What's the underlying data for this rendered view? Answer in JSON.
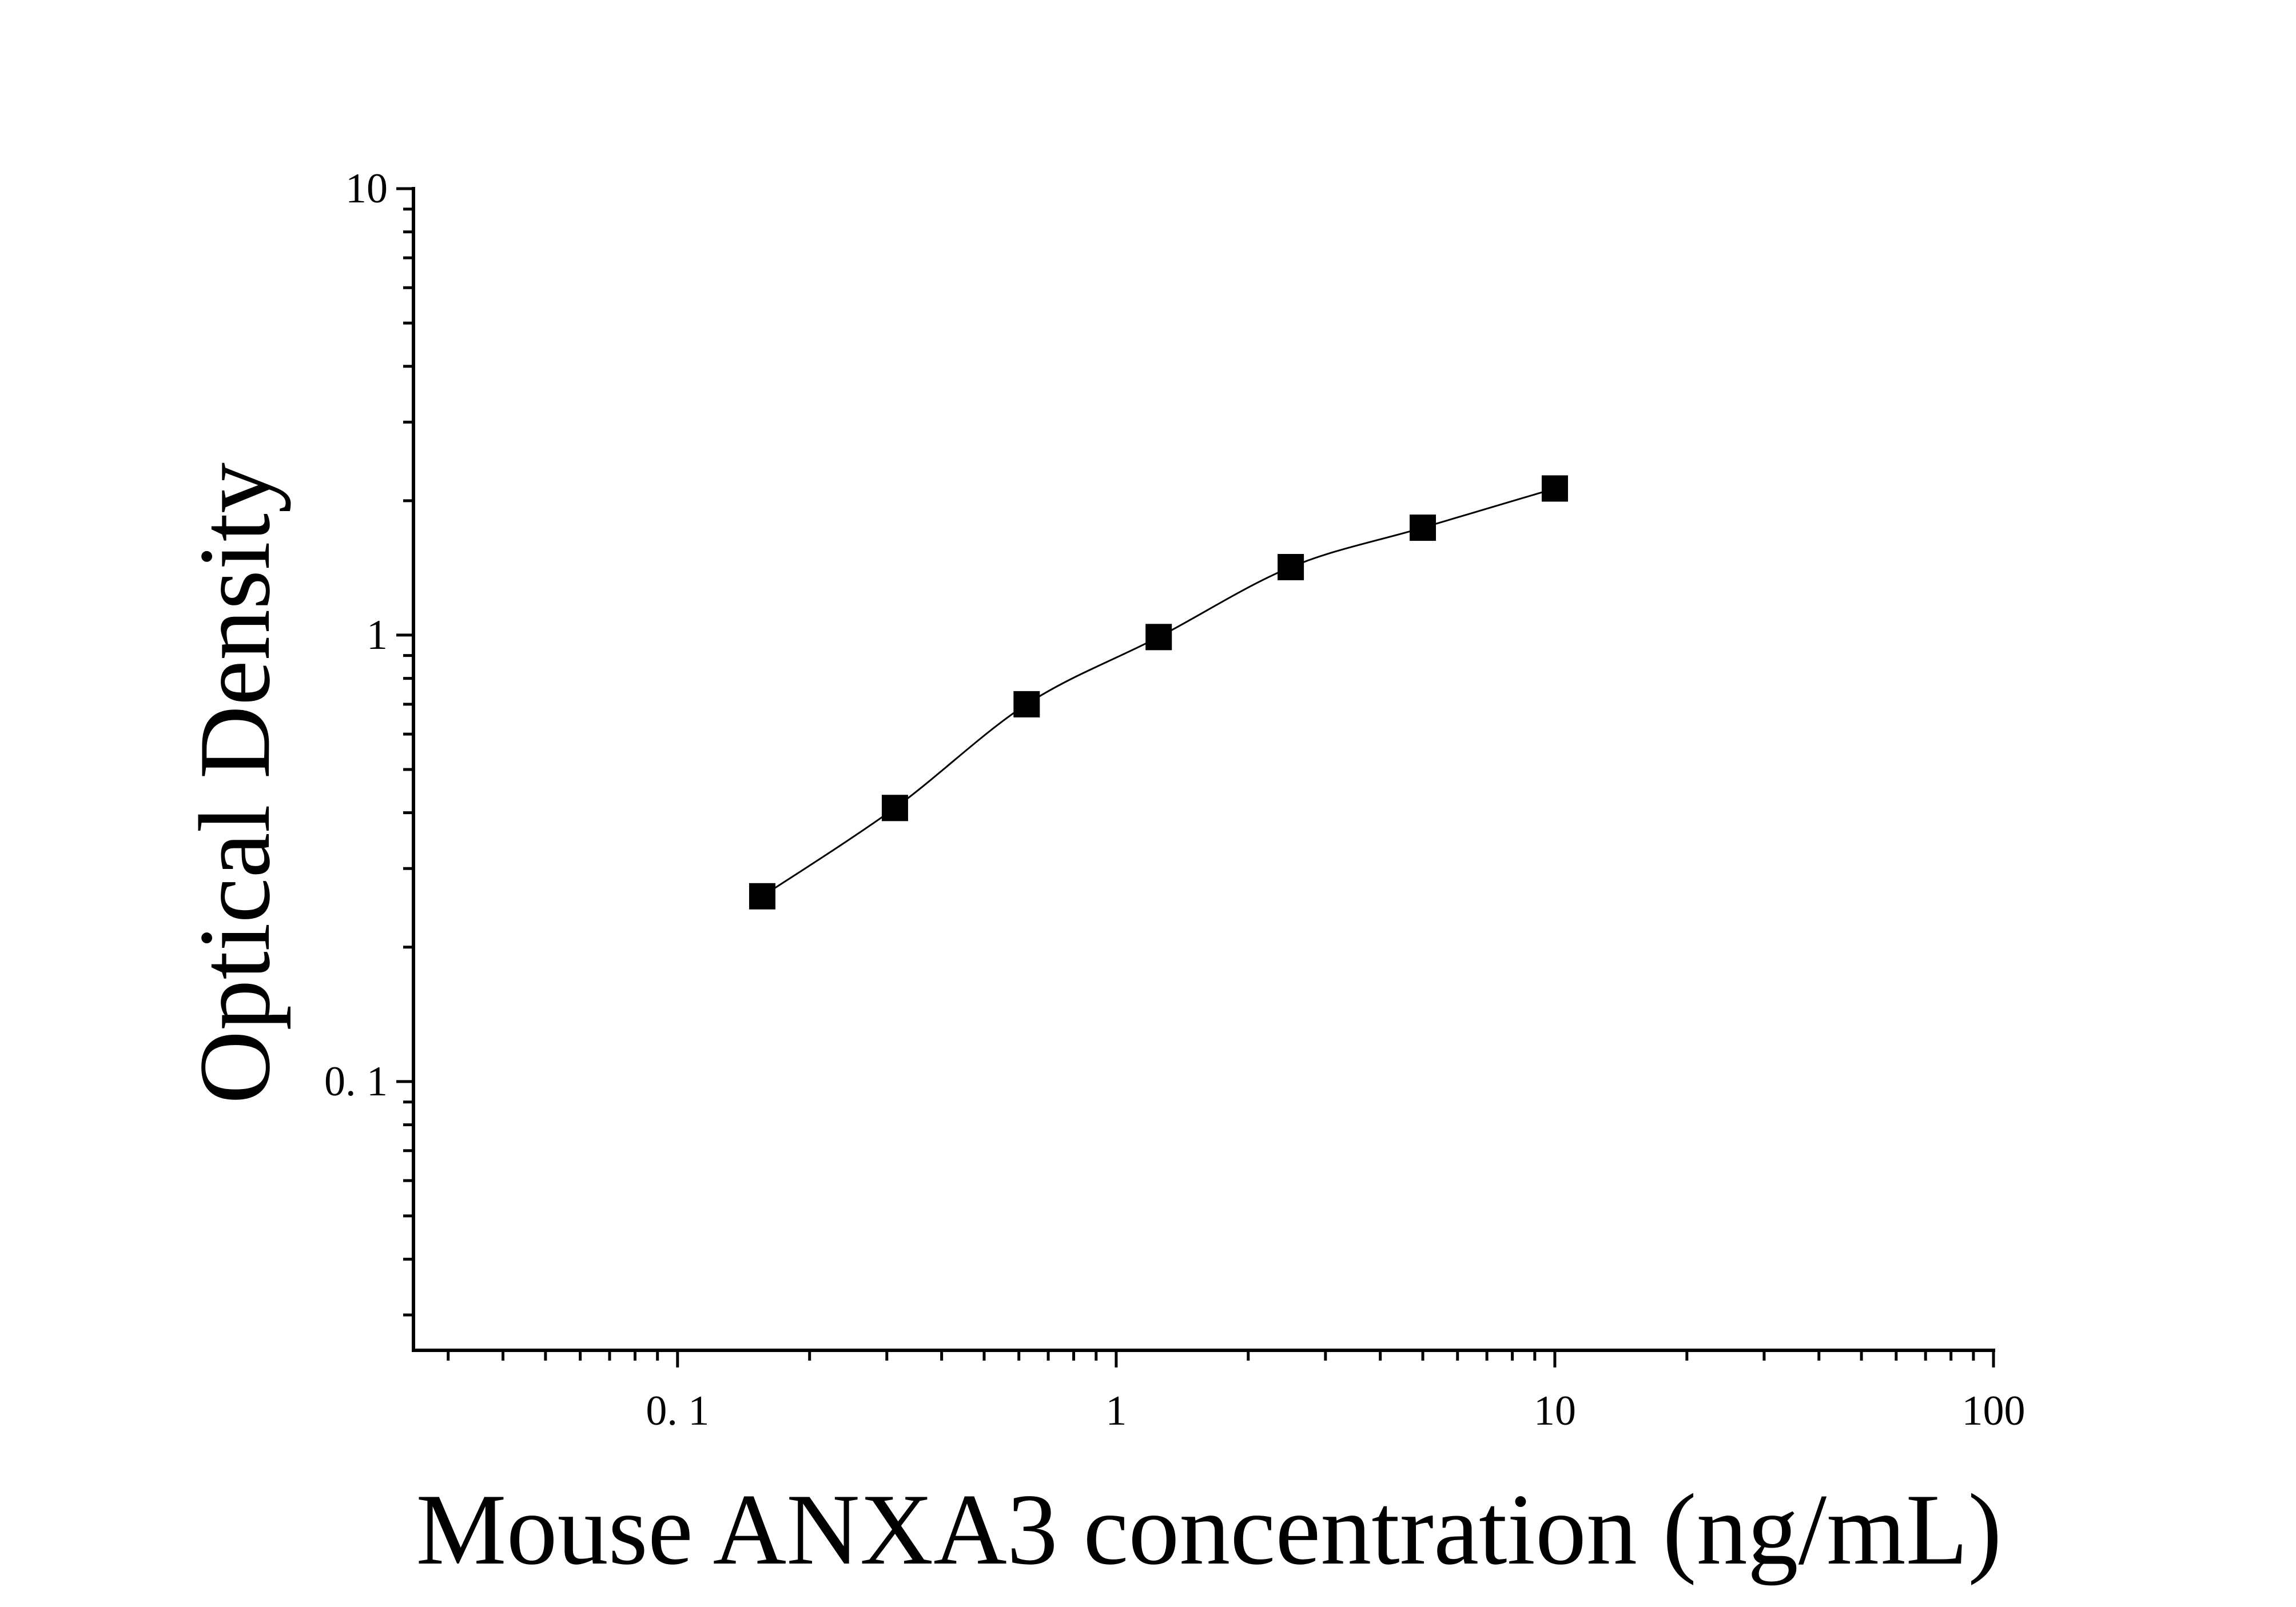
{
  "chart_data": {
    "type": "scatter",
    "xlabel": "Mouse ANXA3 concentration (ng/mL)",
    "ylabel": "Optical Density",
    "xscale": "log",
    "yscale": "log",
    "xlim": [
      0.025,
      100
    ],
    "ylim": [
      0.025,
      10
    ],
    "grid": false,
    "legend": "none",
    "x_tick_labels": [
      {
        "value": 0.1,
        "label": "0. 1"
      },
      {
        "value": 1,
        "label": "1"
      },
      {
        "value": 10,
        "label": "10"
      },
      {
        "value": 100,
        "label": "100"
      }
    ],
    "y_tick_labels": [
      {
        "value": 0.1,
        "label": "0. 1"
      },
      {
        "value": 1,
        "label": "1"
      },
      {
        "value": 10,
        "label": "10"
      }
    ],
    "series": [
      {
        "x": [
          0.156,
          0.313,
          0.625,
          1.25,
          2.5,
          5,
          10
        ],
        "y": [
          0.26,
          0.41,
          0.7,
          0.99,
          1.42,
          1.74,
          2.13
        ],
        "marker": "square",
        "fit": "smooth curve"
      }
    ],
    "colors": {
      "marker": "#000000",
      "line": "#000000",
      "axis": "#000000"
    }
  }
}
